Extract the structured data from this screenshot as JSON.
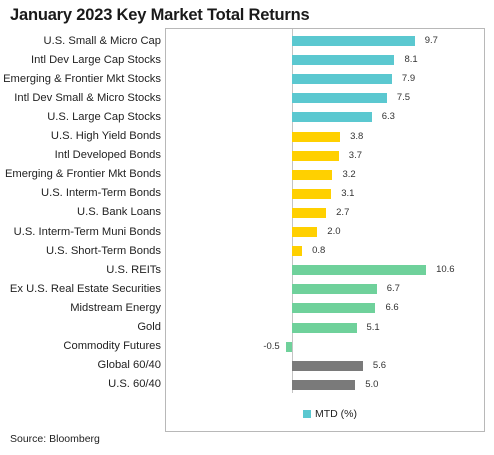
{
  "title": "January 2023 Key Market Total Returns",
  "source": "Source: Bloomberg",
  "colors": {
    "equity": "#5bc8d0",
    "fixed_income": "#ffd000",
    "real_assets": "#6fd19b",
    "balanced": "#7a7a7a"
  },
  "chart_data": {
    "type": "bar",
    "orientation": "horizontal",
    "title": "January 2023 Key Market Total Returns",
    "legend": {
      "entries": [
        "MTD (%)"
      ],
      "position": "bottom"
    },
    "grid": false,
    "xlim": [
      -1,
      11
    ],
    "categories": [
      "U.S. Small & Micro Cap",
      "Intl Dev Large Cap Stocks",
      "Emerging & Frontier Mkt Stocks",
      "Intl Dev Small & Micro Stocks",
      "U.S. Large Cap Stocks",
      "U.S. High Yield Bonds",
      "Intl Developed Bonds",
      "Emerging & Frontier Mkt Bonds",
      "U.S. Interm-Term Bonds",
      "U.S. Bank Loans",
      "U.S. Interm-Term Muni Bonds",
      "U.S. Short-Term Bonds",
      "U.S. REITs",
      "Ex U.S. Real Estate Securities",
      "Midstream Energy",
      "Gold",
      "Commodity Futures",
      "Global 60/40",
      "U.S. 60/40"
    ],
    "values": [
      9.7,
      8.1,
      7.9,
      7.5,
      6.3,
      3.8,
      3.7,
      3.2,
      3.1,
      2.7,
      2.0,
      0.8,
      10.6,
      6.7,
      6.6,
      5.1,
      -0.5,
      5.6,
      5.0
    ],
    "value_labels": [
      "9.7",
      "8.1",
      "7.9",
      "7.5",
      "6.3",
      "3.8",
      "3.7",
      "3.2",
      "3.1",
      "2.7",
      "2.0",
      "0.8",
      "10.6",
      "6.7",
      "6.6",
      "5.1",
      "-0.5",
      "5.6",
      "5.0"
    ],
    "groups": [
      "equity",
      "equity",
      "equity",
      "equity",
      "equity",
      "fixed_income",
      "fixed_income",
      "fixed_income",
      "fixed_income",
      "fixed_income",
      "fixed_income",
      "fixed_income",
      "real_assets",
      "real_assets",
      "real_assets",
      "real_assets",
      "real_assets",
      "balanced",
      "balanced"
    ]
  }
}
